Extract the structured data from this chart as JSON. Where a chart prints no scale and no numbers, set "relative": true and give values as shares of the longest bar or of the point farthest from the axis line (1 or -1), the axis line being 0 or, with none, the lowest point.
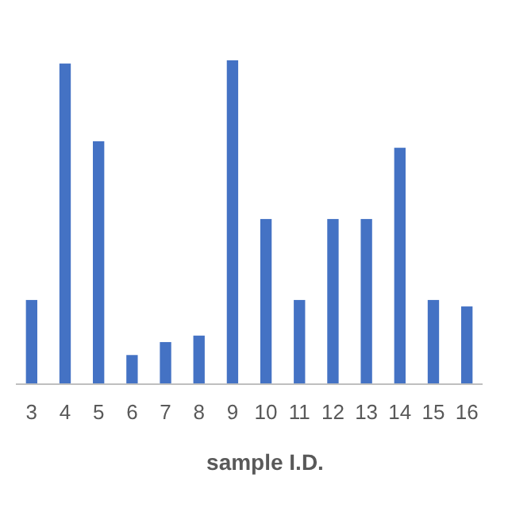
{
  "chart_data": {
    "type": "bar",
    "relative": true,
    "xlabel": "sample I.D.",
    "categories": [
      "3",
      "4",
      "5",
      "6",
      "7",
      "8",
      "9",
      "10",
      "11",
      "12",
      "13",
      "14",
      "15",
      "16"
    ],
    "values": [
      0.26,
      0.99,
      0.75,
      0.09,
      0.13,
      0.15,
      1,
      0.51,
      0.26,
      0.51,
      0.51,
      0.73,
      0.26,
      0.24
    ],
    "color": "#4472c4"
  }
}
